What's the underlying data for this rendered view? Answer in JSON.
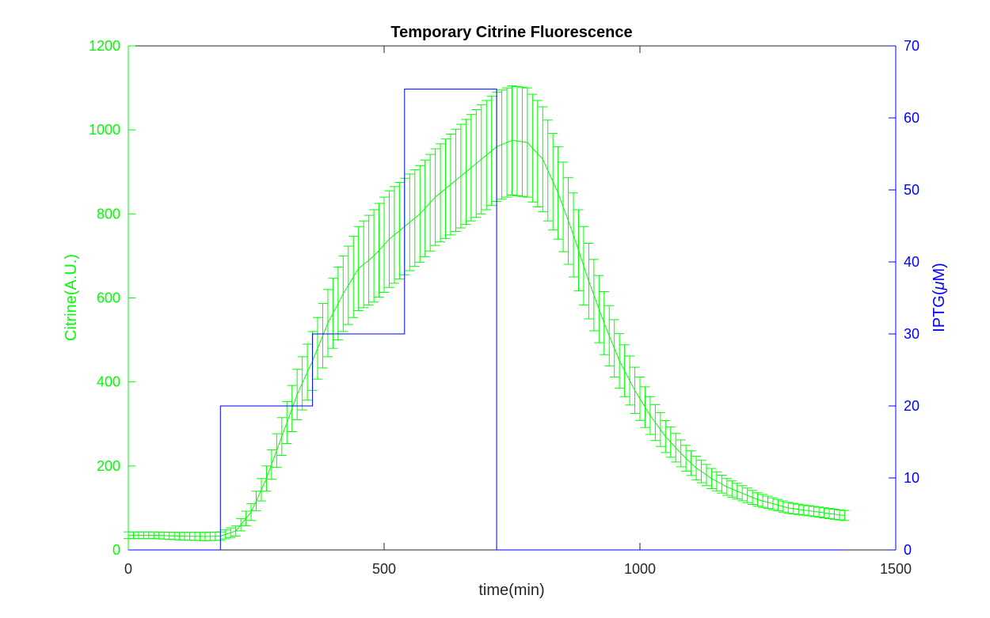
{
  "chart_data": {
    "type": "line",
    "title": "Temporary Citrine Fluorescence",
    "xlabel": "time(min)",
    "ylabel_left": "Citrine(A.U.)",
    "ylabel_right_prefix": "IPTG(",
    "ylabel_right_mu": "μ",
    "ylabel_right_suffix": "M)",
    "xlim": [
      0,
      1500
    ],
    "ylim_left": [
      0,
      1200
    ],
    "ylim_right": [
      0,
      70
    ],
    "x_ticks": [
      0,
      500,
      1000,
      1500
    ],
    "y_left_ticks": [
      0,
      200,
      400,
      600,
      800,
      1000,
      1200
    ],
    "y_right_ticks": [
      0,
      10,
      20,
      30,
      40,
      50,
      60,
      70
    ],
    "grid": false,
    "colors": {
      "citrine": "#00ff00",
      "iptg": "#0000ff",
      "axis_box": "#262626",
      "title": "#000000"
    },
    "series": [
      {
        "name": "Citrine",
        "axis": "left",
        "style": "line-with-errorbars",
        "x_step": 10,
        "x_start": 0,
        "x_end": 1400,
        "points": [
          [
            0,
            35,
            8
          ],
          [
            50,
            35,
            8
          ],
          [
            100,
            33,
            9
          ],
          [
            150,
            32,
            10
          ],
          [
            180,
            33,
            10
          ],
          [
            210,
            45,
            12
          ],
          [
            240,
            90,
            20
          ],
          [
            270,
            170,
            30
          ],
          [
            300,
            270,
            45
          ],
          [
            330,
            370,
            60
          ],
          [
            360,
            450,
            70
          ],
          [
            390,
            540,
            80
          ],
          [
            420,
            610,
            90
          ],
          [
            450,
            670,
            100
          ],
          [
            480,
            700,
            110
          ],
          [
            510,
            740,
            115
          ],
          [
            540,
            770,
            115
          ],
          [
            570,
            800,
            115
          ],
          [
            600,
            840,
            115
          ],
          [
            630,
            870,
            120
          ],
          [
            660,
            900,
            125
          ],
          [
            690,
            930,
            130
          ],
          [
            720,
            960,
            130
          ],
          [
            750,
            975,
            130
          ],
          [
            780,
            970,
            130
          ],
          [
            810,
            930,
            125
          ],
          [
            840,
            850,
            110
          ],
          [
            870,
            750,
            100
          ],
          [
            900,
            640,
            90
          ],
          [
            930,
            540,
            75
          ],
          [
            960,
            450,
            65
          ],
          [
            990,
            380,
            55
          ],
          [
            1020,
            320,
            45
          ],
          [
            1050,
            270,
            38
          ],
          [
            1080,
            230,
            32
          ],
          [
            1110,
            195,
            28
          ],
          [
            1140,
            170,
            24
          ],
          [
            1170,
            150,
            20
          ],
          [
            1200,
            135,
            18
          ],
          [
            1230,
            120,
            16
          ],
          [
            1260,
            110,
            14
          ],
          [
            1290,
            100,
            13
          ],
          [
            1320,
            95,
            12
          ],
          [
            1350,
            90,
            12
          ],
          [
            1380,
            85,
            12
          ],
          [
            1400,
            82,
            12
          ]
        ]
      },
      {
        "name": "IPTG",
        "axis": "right",
        "style": "step",
        "x": [
          0,
          180,
          180,
          360,
          360,
          540,
          540,
          720,
          720,
          1400
        ],
        "y": [
          0,
          0,
          20,
          20,
          30,
          30,
          64,
          64,
          0,
          0
        ]
      }
    ]
  }
}
